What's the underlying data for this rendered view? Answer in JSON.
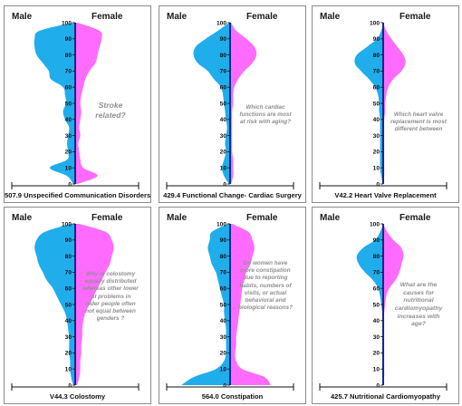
{
  "labels": {
    "male": "Male",
    "female": "Female"
  },
  "colors": {
    "male": "#1fadeb",
    "female": "#ff6bff",
    "axis": "#0f2a8a"
  },
  "chart_data": [
    {
      "type": "area",
      "title": "507.9 Unspecified Communication Disorders",
      "annotation": "Stroke related?",
      "y_ticks": [
        100,
        90,
        80,
        70,
        60,
        50,
        40,
        30,
        20,
        10,
        0
      ],
      "ylim": [
        0,
        100
      ],
      "series": [
        {
          "name": "Male",
          "y": [
            0,
            5,
            10,
            15,
            20,
            25,
            30,
            35,
            40,
            45,
            50,
            55,
            60,
            65,
            70,
            75,
            80,
            85,
            90,
            95,
            100
          ],
          "values": [
            2,
            8,
            25,
            8,
            7,
            8,
            7,
            6,
            10,
            12,
            9,
            10,
            12,
            24,
            26,
            32,
            38,
            40,
            40,
            35,
            2
          ]
        },
        {
          "name": "Female",
          "y": [
            0,
            5,
            10,
            15,
            20,
            25,
            30,
            35,
            40,
            45,
            50,
            55,
            60,
            65,
            70,
            75,
            80,
            85,
            90,
            95,
            100
          ],
          "values": [
            2,
            22,
            8,
            5,
            4,
            3,
            5,
            4,
            5,
            6,
            5,
            6,
            8,
            10,
            14,
            20,
            22,
            24,
            26,
            24,
            2
          ]
        }
      ]
    },
    {
      "type": "area",
      "title": "429.4 Functional Change- Cardiac Surgery",
      "annotation": "Which cardiac functions are most at risk with aging?",
      "y_ticks": [
        100,
        90,
        80,
        70,
        60,
        50,
        40,
        30,
        20,
        10,
        0
      ],
      "ylim": [
        0,
        100
      ],
      "series": [
        {
          "name": "Male",
          "y": [
            0,
            5,
            10,
            15,
            20,
            25,
            30,
            35,
            40,
            45,
            50,
            55,
            60,
            65,
            70,
            75,
            80,
            85,
            90,
            95,
            100
          ],
          "values": [
            1,
            6,
            8,
            6,
            4,
            5,
            4,
            3,
            4,
            5,
            6,
            7,
            9,
            16,
            22,
            32,
            36,
            34,
            24,
            12,
            1
          ]
        },
        {
          "name": "Female",
          "y": [
            0,
            5,
            10,
            15,
            20,
            25,
            30,
            35,
            40,
            45,
            50,
            55,
            60,
            65,
            70,
            75,
            80,
            85,
            90,
            95,
            100
          ],
          "values": [
            1,
            3,
            3,
            3,
            2,
            2,
            2,
            2,
            2,
            2,
            3,
            3,
            4,
            8,
            14,
            22,
            26,
            24,
            16,
            6,
            1
          ]
        }
      ]
    },
    {
      "type": "area",
      "title": "V42.2 Heart Valve Replacement",
      "annotation": "Which heart valve replacement is most different between",
      "y_ticks": [
        100,
        90,
        80,
        70,
        60,
        50,
        40,
        30,
        20,
        10,
        0
      ],
      "ylim": [
        0,
        100
      ],
      "series": [
        {
          "name": "Male",
          "y": [
            0,
            5,
            10,
            15,
            20,
            25,
            30,
            35,
            40,
            45,
            50,
            55,
            60,
            65,
            70,
            75,
            80,
            85,
            90,
            95,
            100
          ],
          "values": [
            0,
            2,
            3,
            3,
            3,
            3,
            3,
            3,
            3,
            4,
            4,
            5,
            8,
            14,
            22,
            28,
            26,
            16,
            6,
            2,
            0
          ]
        },
        {
          "name": "Female",
          "y": [
            0,
            5,
            10,
            15,
            20,
            25,
            30,
            35,
            40,
            45,
            50,
            55,
            60,
            65,
            70,
            75,
            80,
            85,
            90,
            95,
            100
          ],
          "values": [
            0,
            1,
            1,
            1,
            1,
            1,
            1,
            1,
            1,
            2,
            2,
            3,
            5,
            10,
            18,
            22,
            20,
            14,
            8,
            3,
            0
          ]
        }
      ]
    },
    {
      "type": "area",
      "title": "V44.3 Colostomy",
      "annotation": "Why is colostomy equally distributed whereas other lower GI problems in older people often not equal between genders ?",
      "y_ticks": [
        100,
        90,
        80,
        70,
        60,
        50,
        40,
        30,
        20,
        10,
        0
      ],
      "ylim": [
        0,
        100
      ],
      "series": [
        {
          "name": "Male",
          "y": [
            0,
            5,
            10,
            15,
            20,
            25,
            30,
            35,
            40,
            45,
            50,
            55,
            60,
            65,
            70,
            75,
            80,
            85,
            90,
            95,
            100
          ],
          "values": [
            2,
            4,
            5,
            5,
            6,
            6,
            6,
            7,
            8,
            10,
            14,
            18,
            22,
            28,
            32,
            36,
            38,
            40,
            38,
            30,
            4
          ]
        },
        {
          "name": "Female",
          "y": [
            0,
            5,
            10,
            15,
            20,
            25,
            30,
            35,
            40,
            45,
            50,
            55,
            60,
            65,
            70,
            75,
            80,
            85,
            90,
            95,
            100
          ],
          "values": [
            2,
            4,
            5,
            5,
            6,
            6,
            7,
            7,
            8,
            10,
            14,
            18,
            22,
            26,
            30,
            34,
            36,
            38,
            36,
            30,
            4
          ]
        }
      ]
    },
    {
      "type": "area",
      "title": "564.0 Constipation",
      "annotation": "Do women have more constipation due to reporting habits, numbers of visits, or actual behavioral and biological reasons?",
      "y_ticks": [
        100,
        90,
        80,
        70,
        60,
        50,
        40,
        30,
        20,
        10,
        0
      ],
      "ylim": [
        0,
        100
      ],
      "series": [
        {
          "name": "Male",
          "y": [
            0,
            5,
            10,
            15,
            20,
            25,
            30,
            35,
            40,
            45,
            50,
            55,
            60,
            65,
            70,
            75,
            80,
            85,
            90,
            95,
            100
          ],
          "values": [
            48,
            36,
            14,
            6,
            4,
            4,
            4,
            4,
            5,
            6,
            6,
            8,
            10,
            12,
            14,
            18,
            20,
            22,
            20,
            18,
            2
          ]
        },
        {
          "name": "Female",
          "y": [
            0,
            5,
            10,
            15,
            20,
            25,
            30,
            35,
            40,
            45,
            50,
            55,
            60,
            65,
            70,
            75,
            80,
            85,
            90,
            95,
            100
          ],
          "values": [
            40,
            34,
            12,
            6,
            5,
            6,
            6,
            7,
            8,
            9,
            10,
            11,
            12,
            14,
            16,
            20,
            22,
            24,
            22,
            18,
            2
          ]
        }
      ]
    },
    {
      "type": "area",
      "title": "425.7 Nutritional Cardiomyopathy",
      "annotation": "What are the causes for nutritional cardiomyopathy increases with age?",
      "y_ticks": [
        100,
        90,
        80,
        70,
        60,
        50,
        40,
        30,
        20,
        10,
        0
      ],
      "ylim": [
        0,
        100
      ],
      "series": [
        {
          "name": "Male",
          "y": [
            0,
            5,
            10,
            15,
            20,
            25,
            30,
            35,
            40,
            45,
            50,
            55,
            60,
            65,
            70,
            75,
            80,
            85,
            90,
            95,
            100
          ],
          "values": [
            0,
            1,
            1,
            1,
            1,
            1,
            1,
            1,
            1,
            1,
            2,
            3,
            5,
            10,
            18,
            24,
            26,
            20,
            8,
            3,
            0
          ]
        },
        {
          "name": "Female",
          "y": [
            0,
            5,
            10,
            15,
            20,
            25,
            30,
            35,
            40,
            45,
            50,
            55,
            60,
            65,
            70,
            75,
            80,
            85,
            90,
            95,
            100
          ],
          "values": [
            0,
            1,
            1,
            1,
            1,
            1,
            1,
            1,
            1,
            1,
            2,
            3,
            6,
            12,
            16,
            18,
            20,
            18,
            10,
            4,
            0
          ]
        }
      ]
    }
  ]
}
